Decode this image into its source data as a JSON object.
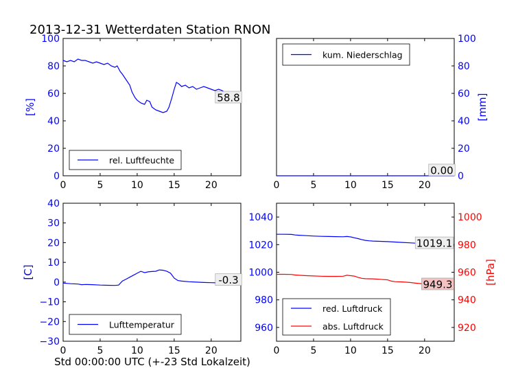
{
  "figure": {
    "title": "2013-12-31 Wetterdaten Station RNON",
    "xlabel": "Std 00:00:00 UTC (+-23 Std Lokalzeit)"
  },
  "colors": {
    "blue": "#0000ff",
    "red": "#ff0000",
    "value_box_fill": "#eeeeee",
    "pressure_box_fill": "#f4c2c2"
  },
  "chart_data": [
    {
      "type": "line",
      "panel": "top-left",
      "title": "",
      "xlabel": "",
      "ylabel": "[%]",
      "xlim": [
        0,
        24
      ],
      "ylim": [
        0,
        100
      ],
      "xticks": [
        0,
        5,
        10,
        15,
        20
      ],
      "yticks": [
        0,
        20,
        40,
        60,
        80,
        100
      ],
      "grid": false,
      "legend_position": "lower-left",
      "series": [
        {
          "name": "rel. Luftfeuchte",
          "color": "#0000ff",
          "x": [
            0,
            0.5,
            1,
            1.5,
            2,
            2.5,
            3,
            3.5,
            4,
            4.5,
            5,
            5.5,
            6,
            6.5,
            7,
            7.3,
            7.7,
            8,
            8.5,
            9,
            9.3,
            9.7,
            10,
            10.5,
            11,
            11.3,
            11.7,
            12,
            12.5,
            13,
            13.5,
            14,
            14.3,
            14.7,
            15,
            15.3,
            15.6,
            16,
            16.5,
            17,
            17.5,
            18,
            18.5,
            19,
            19.5,
            20,
            20.5,
            21,
            21.5,
            22,
            22.5,
            23,
            23.5,
            24
          ],
          "y": [
            84,
            83,
            84,
            83,
            85,
            84,
            84,
            83,
            82,
            83,
            82,
            81,
            82,
            80,
            79,
            80,
            76,
            74,
            70,
            66,
            61,
            57,
            55,
            53,
            52,
            55,
            54,
            50,
            48,
            47,
            46,
            47,
            50,
            57,
            63,
            68,
            67,
            65,
            66,
            64,
            65,
            63,
            64,
            65,
            64,
            63,
            62,
            63,
            62,
            60,
            61,
            59,
            58,
            58
          ]
        }
      ],
      "value_label": "58.8"
    },
    {
      "type": "line",
      "panel": "top-right",
      "title": "",
      "xlabel": "",
      "ylabel": "[mm]",
      "xlim": [
        0,
        24
      ],
      "ylim": [
        0,
        100
      ],
      "xticks": [
        0,
        5,
        10,
        15,
        20
      ],
      "yticks": [
        0,
        20,
        40,
        60,
        80,
        100
      ],
      "yaxis_side": "right",
      "grid": false,
      "legend_position": "top-left",
      "series": [
        {
          "name": "kum. Niederschlag",
          "color": "#0000ff",
          "x": [
            0,
            24
          ],
          "y": [
            0,
            0
          ]
        }
      ],
      "value_label": "0.00"
    },
    {
      "type": "line",
      "panel": "bottom-left",
      "title": "",
      "xlabel": "",
      "ylabel": "[C]",
      "xlim": [
        0,
        24
      ],
      "ylim": [
        -30,
        40
      ],
      "xticks": [
        0,
        5,
        10,
        15,
        20
      ],
      "yticks": [
        -30,
        -20,
        -10,
        0,
        10,
        20,
        30,
        40
      ],
      "grid": false,
      "legend_position": "lower-left",
      "series": [
        {
          "name": "Lufttemperatur",
          "color": "#0000ff",
          "x": [
            0,
            1,
            2,
            2.5,
            3,
            4,
            5,
            6,
            7,
            7.5,
            8,
            8.5,
            9,
            9.5,
            10,
            10.5,
            11,
            11.5,
            12,
            12.5,
            13,
            13.5,
            14,
            14.5,
            15,
            15.5,
            16,
            17,
            18,
            19,
            20,
            21,
            22,
            23,
            24
          ],
          "y": [
            -0.5,
            -0.8,
            -1,
            -1.3,
            -1.2,
            -1.3,
            -1.5,
            -1.6,
            -1.7,
            -1.5,
            0.5,
            1.5,
            2.5,
            3.5,
            4.5,
            5.5,
            4.8,
            5.2,
            5.4,
            5.5,
            6.2,
            6,
            5.5,
            4.5,
            2,
            0.8,
            0.5,
            0.2,
            0,
            -0.2,
            -0.3,
            -0.4,
            -0.3,
            -0.3,
            -0.3
          ]
        }
      ],
      "value_label": "-0.3"
    },
    {
      "type": "line",
      "panel": "bottom-right",
      "title": "",
      "xlabel": "",
      "ylabel": "[hPa]",
      "xlim": [
        0,
        24
      ],
      "ylim": [
        950,
        1050
      ],
      "yticks": [
        960,
        980,
        1000,
        1020,
        1040
      ],
      "ylim_right": [
        910,
        1010
      ],
      "yticks_right": [
        920,
        940,
        960,
        980,
        1000
      ],
      "xticks": [
        0,
        5,
        10,
        15,
        20
      ],
      "grid": false,
      "legend_position": "lower-left",
      "series": [
        {
          "name": "red. Luftdruck",
          "color": "#0000ff",
          "axis": "left",
          "x": [
            0,
            1,
            2,
            2.5,
            3,
            4,
            5,
            6,
            7,
            8,
            9,
            9.5,
            10,
            10.5,
            11,
            11.5,
            12,
            12.5,
            13,
            14,
            15,
            16,
            17,
            18,
            19,
            20,
            21,
            22,
            23,
            24
          ],
          "y": [
            1027.5,
            1027.5,
            1027.4,
            1027,
            1026.8,
            1026.5,
            1026.2,
            1026,
            1025.9,
            1025.8,
            1025.7,
            1025.9,
            1025.6,
            1025,
            1024.4,
            1023.7,
            1023.1,
            1022.8,
            1022.6,
            1022.4,
            1022.2,
            1021.9,
            1021.6,
            1021.3,
            1021,
            1020.5,
            1020,
            1019.6,
            1019.3,
            1019.1
          ]
        },
        {
          "name": "abs. Luftdruck",
          "color": "#ff0000",
          "axis": "right",
          "x": [
            0,
            1,
            2,
            2.5,
            3,
            4,
            5,
            6,
            7,
            8,
            9,
            9.5,
            10,
            10.5,
            11,
            11.5,
            12,
            13,
            14,
            15,
            15.5,
            16,
            17,
            18,
            19,
            20,
            21,
            22,
            23,
            24
          ],
          "y": [
            958.5,
            958.5,
            958.4,
            958,
            957.8,
            957.5,
            957.3,
            957.1,
            957,
            957,
            957.1,
            957.8,
            957.5,
            957.2,
            956.3,
            955.6,
            955.3,
            955.2,
            954.9,
            954.5,
            953.6,
            953.2,
            953,
            952.6,
            952,
            951.5,
            950.8,
            950.2,
            949.5,
            949.3
          ]
        }
      ],
      "value_label_left": "1019.1",
      "value_label_right": "949.3"
    }
  ]
}
